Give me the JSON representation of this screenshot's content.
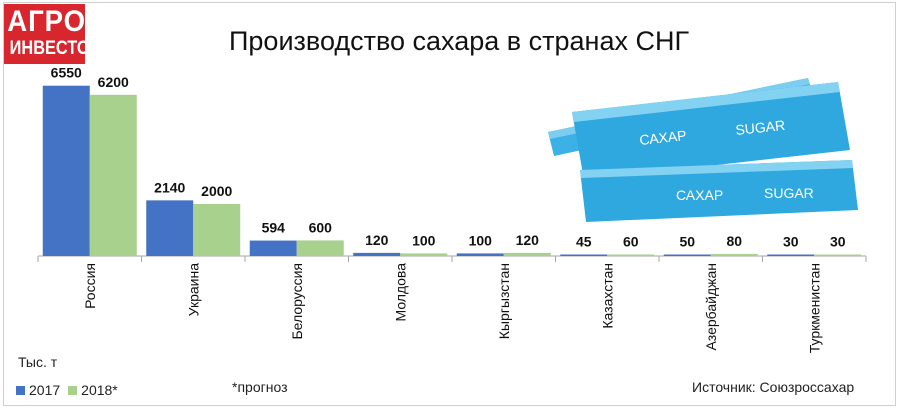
{
  "logo": {
    "line1": "АГРО",
    "line2": "ИНВЕСТОР"
  },
  "colors": {
    "s2017": "#4472c4",
    "s2018": "#a9d18e",
    "logo_red": "#d7262d",
    "packet_blue": "#2fa8e0"
  },
  "chart_data": {
    "type": "bar",
    "title": "Производство сахара в странах СНГ",
    "categories": [
      "Россия",
      "Украина",
      "Белоруссия",
      "Молдова",
      "Кыргызстан",
      "Казахстан",
      "Азербайджан",
      "Туркменистан"
    ],
    "series": [
      {
        "name": "2017",
        "values": [
          6550,
          2140,
          594,
          120,
          100,
          45,
          50,
          30
        ],
        "labels": [
          "6550",
          "2140",
          "594",
          "120",
          "100",
          "45",
          "50",
          "30"
        ]
      },
      {
        "name": "2018*",
        "values": [
          6200,
          2000,
          600,
          100,
          120,
          60,
          80,
          30
        ],
        "labels": [
          "6200",
          "2000",
          "600",
          "100",
          "120",
          "60",
          "80",
          "30"
        ]
      }
    ],
    "ylabel": "Тыс. т",
    "ylim": [
      0,
      7000
    ],
    "legend_placement": "bottom-left",
    "grid": false
  },
  "footnote": "*прогноз",
  "source": "Источник: Союзроссахар",
  "illustration": {
    "packet_label_left": "САХАР",
    "packet_label_right": "SUGAR"
  }
}
